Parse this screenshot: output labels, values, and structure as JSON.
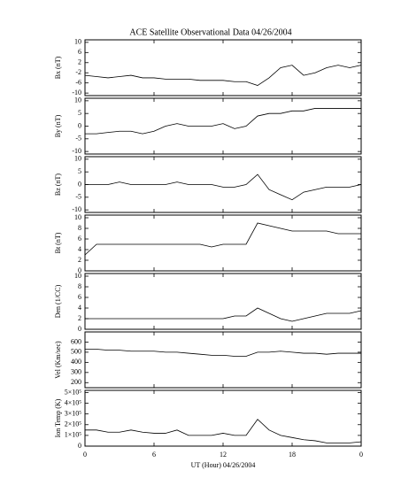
{
  "chart_data": [
    {
      "type": "line",
      "title": "ACE Satellite Observational Data  04/26/2004",
      "ylabel": "Bx (nT)",
      "xlim": [
        0,
        24
      ],
      "ylim": [
        -11,
        11
      ],
      "yticks": [
        -10,
        -6,
        -2,
        2,
        6,
        10
      ],
      "x": [
        0,
        1,
        2,
        3,
        4,
        5,
        6,
        7,
        8,
        9,
        10,
        11,
        12,
        13,
        14,
        15,
        16,
        17,
        18,
        19,
        20,
        21,
        22,
        23,
        24
      ],
      "series": [
        {
          "color": "#000000",
          "values": [
            -3,
            -3.5,
            -4,
            -3.5,
            -3,
            -4,
            -4,
            -4.5,
            -4.5,
            -4.5,
            -5,
            -5,
            -5,
            -5.5,
            -5.5,
            -7,
            -4,
            0,
            1,
            -3,
            -2,
            0,
            1,
            0,
            1
          ]
        }
      ]
    },
    {
      "type": "line",
      "ylabel": "By (nT)",
      "xlim": [
        0,
        24
      ],
      "ylim": [
        -11,
        11
      ],
      "yticks": [
        -10,
        -5,
        0,
        5,
        10
      ],
      "x": [
        0,
        1,
        2,
        3,
        4,
        5,
        6,
        7,
        8,
        9,
        10,
        11,
        12,
        13,
        14,
        15,
        16,
        17,
        18,
        19,
        20,
        21,
        22,
        23,
        24
      ],
      "series": [
        {
          "color": "#000000",
          "values": [
            -3,
            -3,
            -2.5,
            -2,
            -2,
            -3,
            -2,
            0,
            1,
            0,
            0,
            0,
            1,
            -1,
            0,
            4,
            5,
            5,
            6,
            6,
            7,
            7,
            7,
            7,
            7
          ]
        }
      ]
    },
    {
      "type": "line",
      "ylabel": "Bz (nT)",
      "xlim": [
        0,
        24
      ],
      "ylim": [
        -11,
        11
      ],
      "yticks": [
        -10,
        -5,
        0,
        5,
        10
      ],
      "x": [
        0,
        1,
        2,
        3,
        4,
        5,
        6,
        7,
        8,
        9,
        10,
        11,
        12,
        13,
        14,
        15,
        16,
        17,
        18,
        19,
        20,
        21,
        22,
        23,
        24
      ],
      "series": [
        {
          "color": "#000000",
          "values": [
            0,
            0,
            0,
            1,
            0,
            0,
            0,
            0,
            1,
            0,
            0,
            0,
            -1,
            -1,
            0,
            4,
            -2,
            -4,
            -6,
            -3,
            -2,
            -1,
            -1,
            -1,
            0
          ]
        }
      ]
    },
    {
      "type": "line",
      "ylabel": "Bt (nT)",
      "xlim": [
        0,
        24
      ],
      "ylim": [
        0,
        10.5
      ],
      "yticks": [
        0,
        2,
        4,
        6,
        8,
        10
      ],
      "x": [
        0,
        1,
        2,
        3,
        4,
        5,
        6,
        7,
        8,
        9,
        10,
        11,
        12,
        13,
        14,
        15,
        16,
        17,
        18,
        19,
        20,
        21,
        22,
        23,
        24
      ],
      "series": [
        {
          "color": "#000000",
          "values": [
            3,
            5,
            5,
            5,
            5,
            5,
            5,
            5,
            5,
            5,
            5,
            4.5,
            5,
            5,
            5,
            9,
            8.5,
            8,
            7.5,
            7.5,
            7.5,
            7.5,
            7,
            7,
            7
          ]
        }
      ]
    },
    {
      "type": "line",
      "ylabel": "Den (1/CC)",
      "xlim": [
        0,
        24
      ],
      "ylim": [
        0,
        10.5
      ],
      "yticks": [
        0,
        2,
        4,
        6,
        8,
        10
      ],
      "x": [
        0,
        1,
        2,
        3,
        4,
        5,
        6,
        7,
        8,
        9,
        10,
        11,
        12,
        13,
        14,
        15,
        16,
        17,
        18,
        19,
        20,
        21,
        22,
        23,
        24
      ],
      "series": [
        {
          "color": "#000000",
          "values": [
            2,
            2,
            2,
            2,
            2,
            2,
            2,
            2,
            2,
            2,
            2,
            2,
            2,
            2.5,
            2.5,
            4,
            3,
            2,
            1.5,
            2,
            2.5,
            3,
            3,
            3,
            3.5
          ]
        }
      ]
    },
    {
      "type": "line",
      "ylabel": "Vel (Km/sec)",
      "xlim": [
        0,
        24
      ],
      "ylim": [
        150,
        700
      ],
      "yticks": [
        200,
        300,
        400,
        500,
        600
      ],
      "x": [
        0,
        1,
        2,
        3,
        4,
        5,
        6,
        7,
        8,
        9,
        10,
        11,
        12,
        13,
        14,
        15,
        16,
        17,
        18,
        19,
        20,
        21,
        22,
        23,
        24
      ],
      "series": [
        {
          "color": "#000000",
          "values": [
            530,
            530,
            520,
            520,
            510,
            510,
            510,
            500,
            500,
            490,
            480,
            470,
            470,
            460,
            460,
            500,
            500,
            510,
            500,
            490,
            490,
            480,
            490,
            490,
            490
          ]
        }
      ]
    },
    {
      "type": "line",
      "ylabel": "Ion Temp (K)",
      "xlabel": "UT (Hour)  04/26/2004",
      "xlim": [
        0,
        24
      ],
      "ylim": [
        0,
        520000
      ],
      "yticks": [
        0,
        {
          "value": 100000,
          "label": "1×10⁵"
        },
        {
          "value": 200000,
          "label": "2×10⁵"
        },
        {
          "value": 300000,
          "label": "3×10⁵"
        },
        {
          "value": 400000,
          "label": "4×10⁵"
        },
        {
          "value": 500000,
          "label": "5×10⁵"
        }
      ],
      "xticks": [
        0,
        6,
        12,
        18,
        {
          "value": 24,
          "label": "0"
        }
      ],
      "x": [
        0,
        1,
        2,
        3,
        4,
        5,
        6,
        7,
        8,
        9,
        10,
        11,
        12,
        13,
        14,
        15,
        16,
        17,
        18,
        19,
        20,
        21,
        22,
        23,
        24
      ],
      "series": [
        {
          "color": "#000000",
          "values": [
            150000,
            150000,
            130000,
            130000,
            150000,
            130000,
            120000,
            120000,
            150000,
            100000,
            100000,
            100000,
            120000,
            100000,
            100000,
            250000,
            150000,
            100000,
            80000,
            60000,
            50000,
            30000,
            30000,
            30000,
            40000
          ]
        }
      ]
    }
  ]
}
